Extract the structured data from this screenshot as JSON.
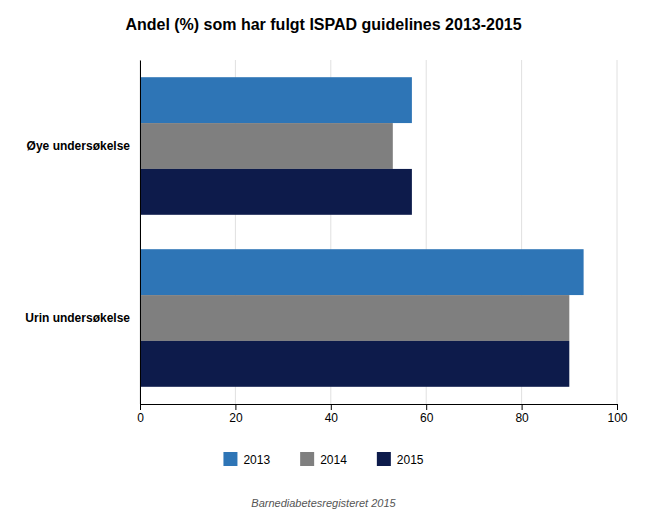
{
  "chart_data": {
    "type": "bar",
    "orientation": "horizontal",
    "title": "Andel (%) som har fulgt ISPAD guidelines 2013-2015",
    "categories": [
      "Urin undersøkelse",
      "Øye undersøkelse"
    ],
    "series": [
      {
        "name": "2013",
        "color": "#2E75B6",
        "values": [
          93,
          57
        ]
      },
      {
        "name": "2014",
        "color": "#7F7F7F",
        "values": [
          90,
          53
        ]
      },
      {
        "name": "2015",
        "color": "#0D1B4B",
        "values": [
          90,
          57
        ]
      }
    ],
    "xlim": [
      0,
      100
    ],
    "xticks": [
      0,
      20,
      40,
      60,
      80,
      100
    ],
    "grid": true,
    "legend": "bottom",
    "annotations": [
      "Barnediabetesregisteret 2015"
    ]
  }
}
